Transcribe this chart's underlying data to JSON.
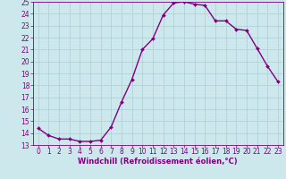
{
  "x": [
    0,
    1,
    2,
    3,
    4,
    5,
    6,
    7,
    8,
    9,
    10,
    11,
    12,
    13,
    14,
    15,
    16,
    17,
    18,
    19,
    20,
    21,
    22,
    23
  ],
  "y": [
    14.4,
    13.8,
    13.5,
    13.5,
    13.3,
    13.3,
    13.4,
    14.5,
    16.6,
    18.5,
    21.0,
    21.9,
    23.9,
    24.9,
    25.0,
    24.8,
    24.7,
    23.4,
    23.4,
    22.7,
    22.6,
    21.1,
    19.6,
    18.3
  ],
  "line_color": "#800080",
  "marker": "D",
  "marker_size": 2.0,
  "bg_color": "#cde8ec",
  "grid_color": "#aacdd4",
  "xlabel": "Windchill (Refroidissement éolien,°C)",
  "xlabel_color": "#800080",
  "tick_color": "#800080",
  "spine_color": "#800080",
  "xlim": [
    -0.5,
    23.5
  ],
  "ylim": [
    13,
    25
  ],
  "yticks": [
    13,
    14,
    15,
    16,
    17,
    18,
    19,
    20,
    21,
    22,
    23,
    24,
    25
  ],
  "xticks": [
    0,
    1,
    2,
    3,
    4,
    5,
    6,
    7,
    8,
    9,
    10,
    11,
    12,
    13,
    14,
    15,
    16,
    17,
    18,
    19,
    20,
    21,
    22,
    23
  ],
  "label_fontsize": 6.0,
  "tick_fontsize": 5.5,
  "linewidth": 1.0
}
